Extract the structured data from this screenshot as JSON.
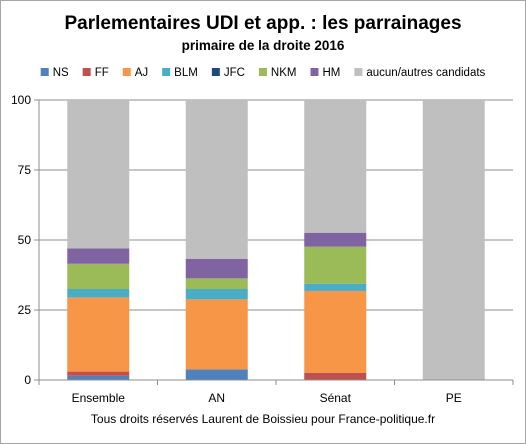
{
  "chart_data": {
    "type": "bar",
    "stacked": true,
    "title": "Parlementaires UDI et app. : les parrainages",
    "subtitle": "primaire de la droite 2016",
    "categories": [
      "Ensemble",
      "AN",
      "Sénat",
      "PE"
    ],
    "ylim": [
      0,
      100
    ],
    "yticks": [
      0,
      25,
      50,
      75,
      100
    ],
    "grid": true,
    "legend_position": "top",
    "series": [
      {
        "name": "NS",
        "color": "#4f81bd",
        "values": [
          1.5,
          3.8,
          0,
          0
        ]
      },
      {
        "name": "FF",
        "color": "#c0504d",
        "values": [
          1.5,
          0,
          2.6,
          0
        ]
      },
      {
        "name": "AJ",
        "color": "#f79646",
        "values": [
          26.5,
          25,
          29.2,
          0
        ]
      },
      {
        "name": "BLM",
        "color": "#4bacc6",
        "values": [
          3,
          3.7,
          2.6,
          0
        ]
      },
      {
        "name": "JFC",
        "color": "#1f497d",
        "values": [
          0,
          0,
          0,
          0
        ]
      },
      {
        "name": "NKM",
        "color": "#9bbb59",
        "values": [
          9,
          3.8,
          13.2,
          0
        ]
      },
      {
        "name": "HM",
        "color": "#8064a2",
        "values": [
          5.5,
          7,
          5,
          0
        ]
      },
      {
        "name": "aucun/autres candidats",
        "color": "#bfbfbf",
        "values": [
          53,
          56.7,
          47.4,
          100
        ]
      }
    ]
  },
  "footer": "Tous droits réservés Laurent de Boissieu pour France-politique.fr"
}
